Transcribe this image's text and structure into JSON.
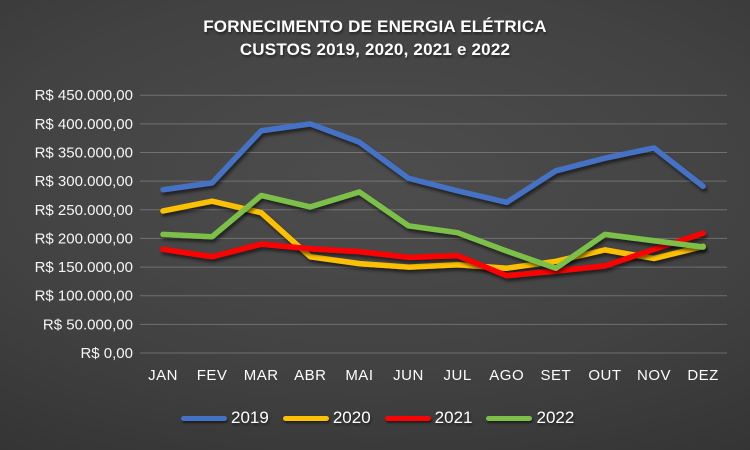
{
  "title": {
    "line1": "FORNECIMENTO DE ENERGIA ELÉTRICA",
    "line2": "CUSTOS 2019, 2020, 2021 e 2022"
  },
  "chart_data": {
    "type": "line",
    "title": "FORNECIMENTO DE ENERGIA ELÉTRICA CUSTOS 2019, 2020, 2021 e 2022",
    "categories": [
      "JAN",
      "FEV",
      "MAR",
      "ABR",
      "MAI",
      "JUN",
      "JUL",
      "AGO",
      "SET",
      "OUT",
      "NOV",
      "DEZ"
    ],
    "series": [
      {
        "name": "2019",
        "color": "#4472C4",
        "values": [
          285000,
          297000,
          388000,
          400000,
          368000,
          305000,
          283000,
          263000,
          318000,
          340000,
          358000,
          291000
        ]
      },
      {
        "name": "2020",
        "color": "#FFC000",
        "values": [
          248000,
          265000,
          245000,
          168000,
          156000,
          150000,
          154000,
          148000,
          160000,
          180000,
          165000,
          186000
        ]
      },
      {
        "name": "2021",
        "color": "#FF0000",
        "values": [
          181000,
          168000,
          190000,
          182000,
          177000,
          167000,
          170000,
          135000,
          143000,
          152000,
          181000,
          209000
        ]
      },
      {
        "name": "2022",
        "color": "#7CC04A",
        "values": [
          207000,
          203000,
          275000,
          255000,
          281000,
          222000,
          210000,
          178000,
          148000,
          207000,
          196000,
          185000
        ]
      }
    ],
    "y_ticks": [
      "R$ 450.000,00",
      "R$ 400.000,00",
      "R$ 350.000,00",
      "R$ 300.000,00",
      "R$ 250.000,00",
      "R$ 200.000,00",
      "R$ 150.000,00",
      "R$ 100.000,00",
      "R$ 50.000,00",
      "R$ 0,00"
    ],
    "ylim": [
      0,
      450000
    ],
    "y_step": 50000,
    "grid": true,
    "legend_position": "bottom",
    "text_color": "#ffffff",
    "gridline_color": "#9b9b9b"
  }
}
